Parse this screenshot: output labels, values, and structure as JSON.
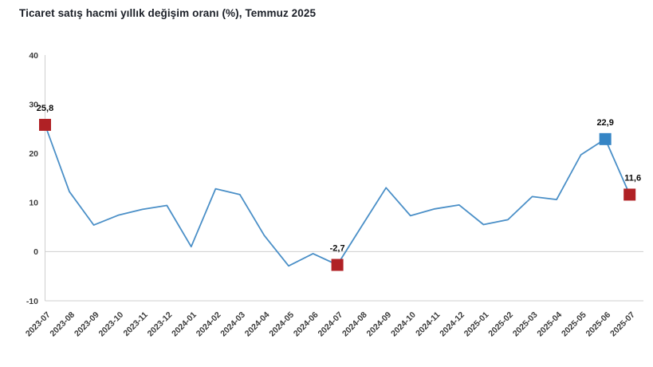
{
  "title": "Ticaret satış hacmi yıllık değişim oranı (%), Temmuz 2025",
  "colors": {
    "line": "#4a8fc7",
    "marker_red": "#b02125",
    "marker_blue": "#3585c5",
    "axis": "#cfcfcf",
    "tick_text": "#3d3d3d",
    "title_text": "#1b1f27"
  },
  "chart_data": {
    "type": "line",
    "title": "Ticaret satış hacmi yıllık değişim oranı (%), Temmuz 2025",
    "xlabel": "",
    "ylabel": "",
    "ylim": [
      -10,
      40
    ],
    "y_ticks": [
      40,
      30,
      20,
      10,
      0,
      -10
    ],
    "grid": "zero-line-only",
    "legend_position": "none",
    "line_color": "#4a8fc7",
    "categories": [
      "2023-07",
      "2023-08",
      "2023-09",
      "2023-10",
      "2023-11",
      "2023-12",
      "2024-01",
      "2024-02",
      "2024-03",
      "2024-04",
      "2024-05",
      "2024-06",
      "2024-07",
      "2024-08",
      "2024-09",
      "2024-10",
      "2024-11",
      "2024-12",
      "2025-01",
      "2025-02",
      "2025-03",
      "2025-04",
      "2025-05",
      "2025-06",
      "2025-07"
    ],
    "values": [
      25.8,
      12.2,
      5.4,
      7.4,
      8.6,
      9.4,
      1.0,
      12.8,
      11.6,
      3.3,
      -2.9,
      -0.4,
      -2.7,
      5.2,
      13.0,
      7.3,
      8.7,
      9.5,
      5.5,
      6.5,
      11.2,
      10.6,
      19.7,
      22.9,
      11.6
    ],
    "highlighted_points": [
      {
        "category": "2023-07",
        "value": 25.8,
        "label": "25,8",
        "marker_color": "#b02125"
      },
      {
        "category": "2024-07",
        "value": -2.7,
        "label": "-2,7",
        "marker_color": "#b02125"
      },
      {
        "category": "2025-06",
        "value": 22.9,
        "label": "22,9",
        "marker_color": "#3585c5"
      },
      {
        "category": "2025-07",
        "value": 11.6,
        "label": "11,6",
        "marker_color": "#b02125"
      }
    ]
  }
}
